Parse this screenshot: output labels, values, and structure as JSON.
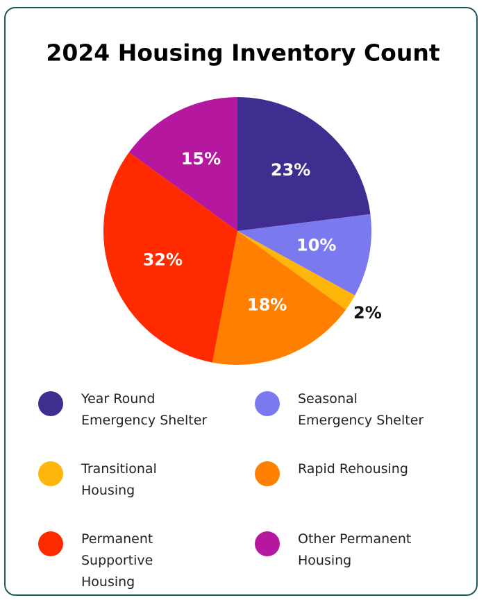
{
  "chart_data": {
    "type": "pie",
    "title": "2024 Housing Inventory Count",
    "categories": [
      "Year Round Emergency Shelter",
      "Seasonal Emergency Shelter",
      "Transitional Housing",
      "Rapid Rehousing",
      "Permanent Supportive Housing",
      "Other Permanent Housing"
    ],
    "values": [
      23,
      10,
      2,
      18,
      32,
      15
    ],
    "value_labels": [
      "23%",
      "10%",
      "2%",
      "18%",
      "32%",
      "15%"
    ],
    "colors": [
      "#3f2e8f",
      "#7b79f0",
      "#ffb60a",
      "#ff8000",
      "#ff2a00",
      "#b5179e"
    ]
  }
}
